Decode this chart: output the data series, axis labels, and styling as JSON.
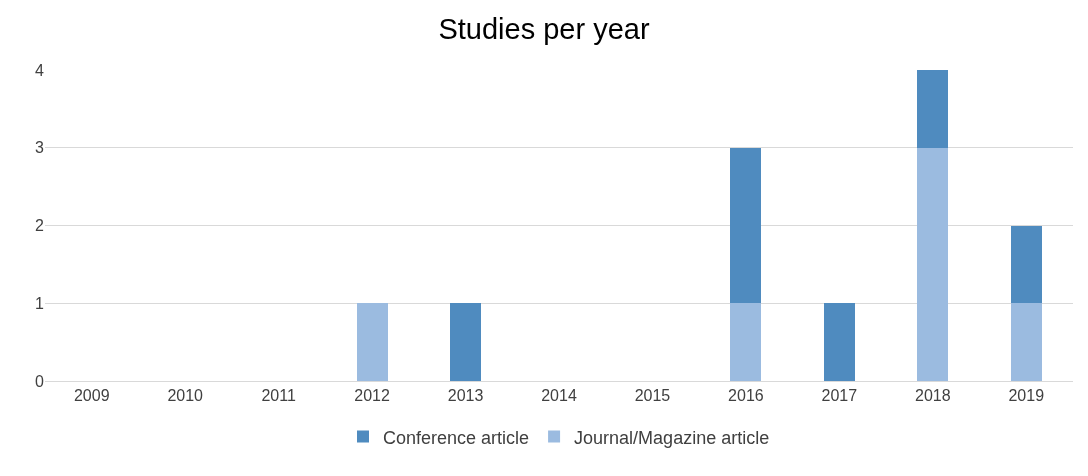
{
  "chart_data": {
    "type": "bar",
    "title": "Studies per year",
    "stacked": true,
    "categories": [
      "2009",
      "2010",
      "2011",
      "2012",
      "2013",
      "2014",
      "2015",
      "2016",
      "2017",
      "2018",
      "2019"
    ],
    "series": [
      {
        "name": "Journal/Magazine article",
        "color": "#9bbbe0",
        "values": [
          0,
          0,
          0,
          1,
          0,
          0,
          0,
          1,
          0,
          3,
          1
        ]
      },
      {
        "name": "Conference article",
        "color": "#4f8bbf",
        "values": [
          0,
          0,
          0,
          0,
          1,
          0,
          0,
          2,
          1,
          1,
          1
        ]
      }
    ],
    "ylim": [
      0,
      4
    ],
    "yticks": [
      0,
      1,
      2,
      3,
      4
    ],
    "grid": "y",
    "legend": "bottom"
  }
}
